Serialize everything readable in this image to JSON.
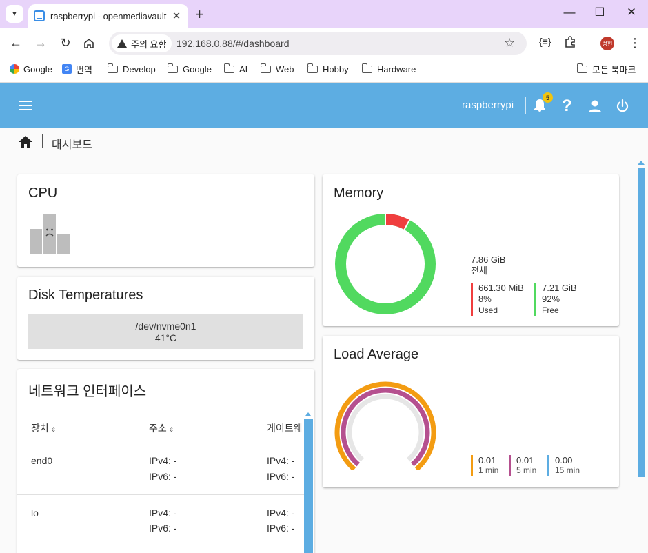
{
  "browser": {
    "tab_title": "raspberrypi - openmediavault",
    "security_chip": "주의 요함",
    "url": "192.168.0.88/#/dashboard",
    "profile_initials": "성현",
    "bookmarks": [
      {
        "label": "Google",
        "icon": "google-icon"
      },
      {
        "label": "번역",
        "icon": "translate-icon"
      },
      {
        "label": "Develop",
        "icon": "folder-icon"
      },
      {
        "label": "Google",
        "icon": "folder-icon"
      },
      {
        "label": "AI",
        "icon": "folder-icon"
      },
      {
        "label": "Web",
        "icon": "folder-icon"
      },
      {
        "label": "Hobby",
        "icon": "folder-icon"
      },
      {
        "label": "Hardware",
        "icon": "folder-icon"
      }
    ],
    "all_bookmarks": "모든 북마크"
  },
  "app": {
    "hostname": "raspberrypi",
    "notification_count": "5",
    "accent_color": "#5dade2"
  },
  "breadcrumb": {
    "label": "대시보드"
  },
  "cpu": {
    "title": "CPU"
  },
  "disk": {
    "title": "Disk Temperatures",
    "device": "/dev/nvme0n1",
    "temperature": "41°C"
  },
  "network": {
    "title": "네트워크 인터페이스",
    "columns": [
      "장치",
      "주소",
      "게이트웨"
    ],
    "rows": [
      {
        "device": "end0",
        "ipv4": "IPv4: -",
        "ipv6": "IPv6: -",
        "gw4": "IPv4: -",
        "gw6": "IPv6: -"
      },
      {
        "device": "lo",
        "ipv4": "IPv4: -",
        "ipv6": "IPv6: -",
        "gw4": "IPv4: -",
        "gw6": "IPv6: -"
      }
    ]
  },
  "memory": {
    "title": "Memory",
    "total_value": "7.86 GiB",
    "total_label": "전체",
    "used_value": "661.30 MiB",
    "used_pct": "8%",
    "used_label": "Used",
    "free_value": "7.21 GiB",
    "free_pct": "92%",
    "free_label": "Free",
    "used_fraction": 0.08,
    "used_color": "#f03e3e",
    "free_color": "#51d95f"
  },
  "load": {
    "title": "Load Average",
    "one_value": "0.01",
    "one_label": "1 min",
    "one_color": "#f39c12",
    "five_value": "0.01",
    "five_label": "5 min",
    "five_color": "#b5508f",
    "fifteen_value": "0.00",
    "fifteen_label": "15 min",
    "fifteen_color": "#5dade2"
  }
}
